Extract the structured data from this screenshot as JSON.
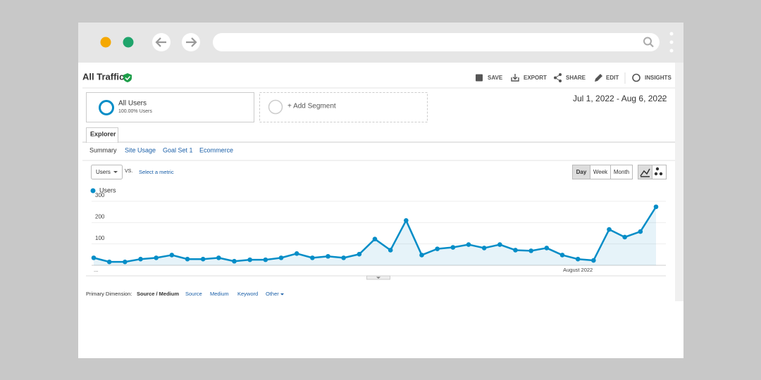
{
  "header": {
    "title": "All Traffic",
    "actions": [
      "SAVE",
      "EXPORT",
      "SHARE",
      "EDIT",
      "INSIGHTS"
    ]
  },
  "segments": {
    "active": {
      "name": "All Users",
      "share": "100.00% Users"
    },
    "add": "+ Add Segment"
  },
  "date_range": "Jul 1, 2022 - Aug 6, 2022",
  "tabs": {
    "active": "Explorer",
    "subtabs": [
      "Summary",
      "Site Usage",
      "Goal Set 1",
      "Ecommerce"
    ]
  },
  "metric_selector": {
    "metric": "Users",
    "vs": "VS.",
    "select": "Select a metric"
  },
  "granularity": [
    "Day",
    "Week",
    "Month"
  ],
  "chart_data": {
    "type": "line",
    "categories": [
      "...",
      null,
      null,
      null,
      null,
      null,
      null,
      null,
      null,
      null,
      null,
      null,
      null,
      null,
      null,
      null,
      null,
      null,
      null,
      null,
      null,
      null,
      null,
      null,
      null,
      null,
      null,
      null,
      null,
      null,
      null,
      "August 2022",
      null,
      null,
      null,
      null,
      null
    ],
    "series": [
      {
        "name": "Users",
        "color": "#058dc7",
        "values": [
          35,
          16,
          16,
          29,
          35,
          48,
          29,
          29,
          35,
          19,
          26,
          26,
          35,
          55,
          35,
          42,
          35,
          52,
          123,
          71,
          210,
          48,
          77,
          84,
          97,
          81,
          97,
          71,
          68,
          81,
          48,
          29,
          23,
          168,
          132,
          158,
          274
        ]
      }
    ],
    "ylim": [
      0,
      310
    ],
    "yticks": [
      100,
      200,
      300
    ],
    "grid": true,
    "area": true
  },
  "primary_dimension": {
    "label": "Primary Dimension:",
    "options": [
      "Source / Medium",
      "Source",
      "Medium",
      "Keyword",
      "Other"
    ]
  }
}
